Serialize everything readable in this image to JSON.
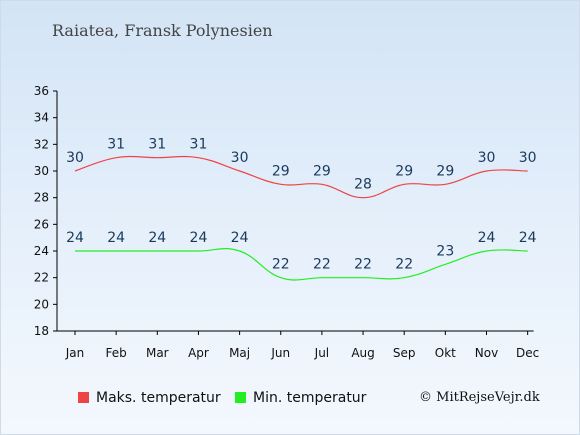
{
  "chart_data": {
    "type": "line",
    "title": "Raiatea, Fransk Polynesien",
    "categories": [
      "Jan",
      "Feb",
      "Mar",
      "Apr",
      "Maj",
      "Jun",
      "Jul",
      "Aug",
      "Sep",
      "Okt",
      "Nov",
      "Dec"
    ],
    "yticks": [
      "18",
      "20",
      "22",
      "24",
      "26",
      "28",
      "30",
      "32",
      "34",
      "36"
    ],
    "ylim": [
      18,
      36
    ],
    "grid": false,
    "legend_position": "bottom",
    "series": [
      {
        "name": "Maks. temperatur",
        "color": "#ee4444",
        "values": [
          30,
          31,
          31,
          31,
          30,
          29,
          29,
          28,
          29,
          29,
          30,
          30
        ]
      },
      {
        "name": "Min. temperatur",
        "color": "#22ee22",
        "values": [
          24,
          24,
          24,
          24,
          24,
          22,
          22,
          22,
          22,
          23,
          24,
          24
        ]
      }
    ]
  },
  "legend": {
    "max_label": "Maks. temperatur",
    "min_label": "Min. temperatur"
  },
  "copyright": "© MitRejseVejr.dk",
  "colors": {
    "label_text": "#1a3a5c",
    "axis": "#000000"
  }
}
